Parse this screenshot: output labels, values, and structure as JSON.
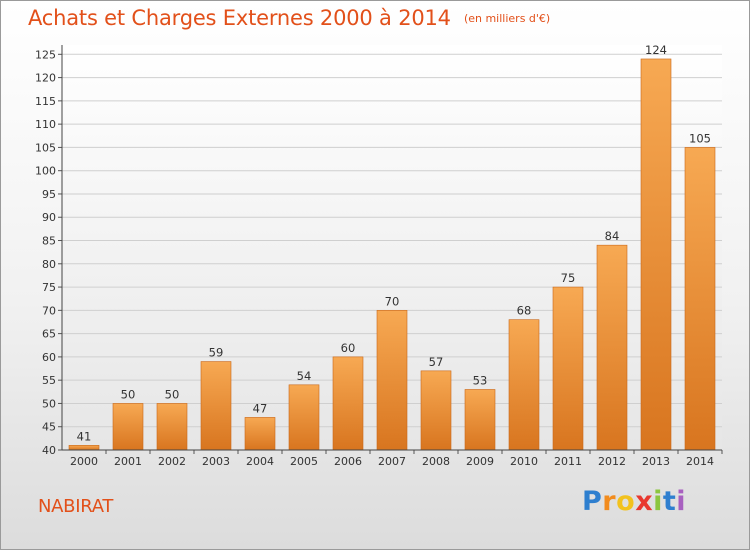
{
  "header": {
    "title": "Achats et Charges Externes 2000 à 2014",
    "unit_note": "(en milliers d'€)"
  },
  "footer": {
    "town": "NABIRAT",
    "brand": {
      "letters": [
        "P",
        "r",
        "o",
        "x",
        "i",
        "t",
        "i"
      ],
      "colors": [
        "#2e7fcf",
        "#f28c1e",
        "#f2c21e",
        "#e8382f",
        "#8cc63f",
        "#2e7fcf",
        "#a860c0"
      ]
    }
  },
  "colors": {
    "bar_light": "#f7a953",
    "bar_dark": "#d8751f",
    "title": "#e2501a"
  },
  "chart_data": {
    "type": "bar",
    "title": "Achats et Charges Externes 2000 à 2014",
    "unit": "(en milliers d'€)",
    "categories": [
      "2000",
      "2001",
      "2002",
      "2003",
      "2004",
      "2005",
      "2006",
      "2007",
      "2008",
      "2009",
      "2010",
      "2011",
      "2012",
      "2013",
      "2014"
    ],
    "values": [
      41,
      50,
      50,
      59,
      47,
      54,
      60,
      70,
      57,
      53,
      68,
      75,
      84,
      124,
      105
    ],
    "value_labels": [
      "41",
      "50",
      "50",
      "59",
      "47",
      "54",
      "60",
      "70",
      "57",
      "53",
      "68",
      "75",
      "84",
      "124",
      "105"
    ],
    "yticks": [
      40,
      45,
      50,
      55,
      60,
      65,
      70,
      75,
      80,
      85,
      90,
      95,
      100,
      105,
      110,
      115,
      120,
      125
    ],
    "ytick_labels": [
      "40",
      "45",
      "50",
      "55",
      "60",
      "65",
      "70",
      "75",
      "80",
      "85",
      "90",
      "95",
      "100",
      "105",
      "110",
      "115",
      "120",
      "125"
    ],
    "ylim": [
      40,
      127
    ],
    "grid": true,
    "legend": "none"
  }
}
